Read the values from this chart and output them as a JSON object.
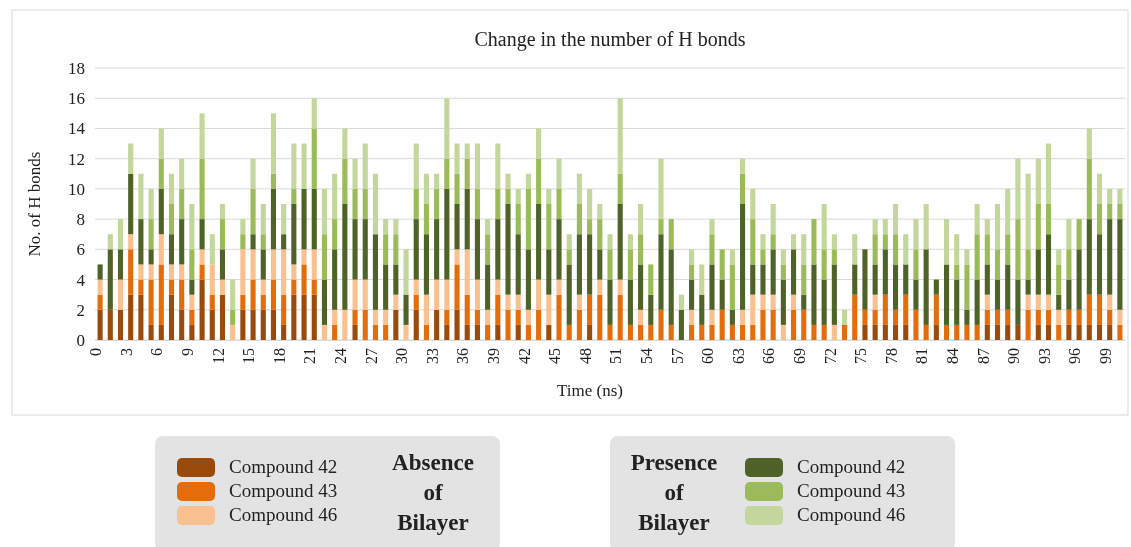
{
  "chart_data": {
    "type": "bar",
    "stacked": true,
    "title": "Change in the number of H bonds",
    "xlabel": "Time (ns)",
    "ylabel": "No. of H bonds",
    "categories": [
      "0",
      null,
      null,
      "3",
      null,
      null,
      "6",
      null,
      null,
      "9",
      null,
      null,
      "12",
      null,
      null,
      "15",
      null,
      null,
      "18",
      null,
      null,
      "21",
      null,
      null,
      "24",
      null,
      null,
      "27",
      null,
      null,
      "30",
      null,
      null,
      "33",
      null,
      null,
      "36",
      null,
      null,
      "39",
      null,
      null,
      "42",
      null,
      null,
      "45",
      null,
      null,
      "48",
      null,
      null,
      "51",
      null,
      null,
      "54",
      null,
      null,
      "57",
      null,
      null,
      "60",
      null,
      null,
      "63",
      null,
      null,
      "66",
      null,
      null,
      "69",
      null,
      null,
      "72",
      null,
      null,
      "75",
      null,
      null,
      "78",
      null,
      null,
      "81",
      null,
      null,
      "84",
      null,
      null,
      "87",
      null,
      null,
      "90",
      null,
      null,
      "93",
      null,
      null,
      "96",
      null,
      null,
      "99",
      null
    ],
    "ylim": [
      0,
      18
    ],
    "yticks": [
      0,
      2,
      4,
      6,
      8,
      10,
      12,
      14,
      16,
      18
    ],
    "grid": "y",
    "legend": "bottom",
    "annotations": [
      "Absence of Bilayer",
      "Presence of Bilayer"
    ],
    "series": [
      {
        "name": "Compound 42",
        "color": "#9a4a0b",
        "values": [
          2,
          2,
          2,
          3,
          3,
          1,
          1,
          3,
          2,
          1,
          4,
          2,
          3,
          0,
          2,
          2,
          2,
          2,
          1,
          3,
          3,
          3,
          0,
          0,
          0,
          1,
          0,
          0,
          0,
          2,
          0,
          2,
          0,
          2,
          1,
          2,
          1,
          1,
          0,
          1,
          0,
          1,
          0,
          0,
          1,
          0,
          0,
          0,
          1,
          0,
          0,
          0,
          0,
          0,
          0,
          0,
          0,
          0,
          0,
          0,
          0,
          0,
          0,
          0,
          0,
          0,
          0,
          0,
          0,
          0,
          0,
          0,
          0,
          0,
          0,
          1,
          1,
          1,
          1,
          1,
          0,
          0,
          1,
          0,
          0,
          0,
          0,
          1,
          1,
          1,
          1,
          0,
          1,
          1,
          0,
          1,
          1,
          1,
          1,
          1,
          0
        ]
      },
      {
        "name": "Compound 43",
        "color": "#e46c0a",
        "values": [
          1,
          0,
          0,
          3,
          1,
          3,
          4,
          1,
          2,
          1,
          1,
          1,
          0,
          0,
          1,
          2,
          1,
          2,
          2,
          1,
          2,
          1,
          0,
          1,
          0,
          1,
          2,
          1,
          1,
          0,
          0,
          1,
          1,
          0,
          1,
          3,
          2,
          1,
          1,
          2,
          2,
          1,
          1,
          2,
          0,
          3,
          1,
          2,
          2,
          3,
          1,
          3,
          1,
          1,
          1,
          2,
          1,
          0,
          1,
          1,
          1,
          2,
          1,
          1,
          1,
          2,
          2,
          0,
          2,
          2,
          1,
          1,
          0,
          1,
          3,
          1,
          1,
          2,
          1,
          2,
          2,
          1,
          2,
          1,
          1,
          1,
          1,
          1,
          1,
          1,
          0,
          2,
          1,
          1,
          1,
          1,
          1,
          2,
          2,
          1,
          1
        ]
      },
      {
        "name": "Compound 46",
        "color": "#fac090",
        "values": [
          1,
          0,
          2,
          1,
          1,
          1,
          2,
          1,
          1,
          1,
          1,
          2,
          1,
          1,
          3,
          2,
          1,
          2,
          3,
          1,
          1,
          2,
          1,
          1,
          2,
          2,
          2,
          1,
          1,
          1,
          1,
          1,
          2,
          2,
          2,
          1,
          3,
          2,
          1,
          1,
          1,
          1,
          1,
          2,
          2,
          1,
          0,
          1,
          0,
          1,
          0,
          1,
          0,
          1,
          0,
          0,
          0,
          0,
          1,
          0,
          1,
          0,
          0,
          1,
          2,
          1,
          1,
          1,
          1,
          0,
          0,
          0,
          1,
          0,
          0,
          0,
          1,
          0,
          0,
          0,
          0,
          0,
          0,
          0,
          0,
          0,
          0,
          1,
          0,
          0,
          0,
          1,
          1,
          1,
          1,
          0,
          0,
          0,
          0,
          1,
          1
        ]
      },
      {
        "name": "Compound 42",
        "color": "#4f6228",
        "values": [
          1,
          4,
          2,
          4,
          3,
          1,
          3,
          2,
          3,
          1,
          2,
          0,
          2,
          0,
          0,
          1,
          2,
          4,
          1,
          4,
          4,
          4,
          3,
          4,
          7,
          4,
          4,
          5,
          3,
          2,
          2,
          4,
          4,
          4,
          6,
          3,
          4,
          4,
          3,
          4,
          6,
          4,
          4,
          5,
          3,
          4,
          4,
          4,
          4,
          2,
          3,
          5,
          3,
          3,
          2,
          5,
          5,
          2,
          2,
          2,
          3,
          2,
          1,
          7,
          2,
          2,
          3,
          3,
          3,
          1,
          4,
          3,
          4,
          0,
          2,
          4,
          2,
          3,
          3,
          2,
          2,
          5,
          1,
          4,
          3,
          1,
          3,
          2,
          2,
          3,
          3,
          1,
          3,
          4,
          1,
          2,
          4,
          5,
          4,
          5,
          6
        ]
      },
      {
        "name": "Compound 43",
        "color": "#9bbb59",
        "values": [
          0,
          0,
          0,
          0,
          0,
          2,
          2,
          2,
          2,
          2,
          4,
          0,
          2,
          1,
          1,
          3,
          1,
          1,
          0,
          1,
          0,
          4,
          3,
          2,
          3,
          2,
          2,
          0,
          2,
          2,
          0,
          2,
          2,
          2,
          2,
          2,
          2,
          2,
          2,
          2,
          1,
          2,
          4,
          3,
          3,
          2,
          1,
          2,
          1,
          2,
          2,
          2,
          2,
          2,
          2,
          1,
          2,
          0,
          1,
          0,
          2,
          2,
          3,
          2,
          3,
          1,
          1,
          1,
          0,
          2,
          3,
          2,
          1,
          0,
          0,
          0,
          2,
          1,
          2,
          0,
          2,
          0,
          0,
          0,
          1,
          3,
          3,
          2,
          2,
          2,
          4,
          2,
          3,
          2,
          2,
          2,
          2,
          4,
          2,
          1,
          1
        ]
      },
      {
        "name": "Compound 46",
        "color": "#c3d69b",
        "values": [
          0,
          1,
          2,
          2,
          3,
          2,
          2,
          2,
          2,
          3,
          3,
          2,
          1,
          2,
          1,
          2,
          2,
          4,
          2,
          3,
          3,
          2,
          3,
          3,
          2,
          2,
          3,
          4,
          1,
          1,
          3,
          3,
          2,
          1,
          4,
          2,
          1,
          3,
          1,
          3,
          1,
          1,
          1,
          2,
          1,
          2,
          1,
          2,
          2,
          1,
          1,
          5,
          1,
          2,
          0,
          4,
          0,
          1,
          1,
          2,
          1,
          0,
          1,
          1,
          2,
          1,
          2,
          1,
          1,
          2,
          0,
          3,
          1,
          1,
          2,
          0,
          1,
          1,
          2,
          2,
          2,
          3,
          0,
          3,
          2,
          1,
          2,
          1,
          3,
          3,
          4,
          5,
          3,
          4,
          1,
          2,
          0,
          2,
          2,
          1,
          1
        ]
      }
    ]
  }
}
